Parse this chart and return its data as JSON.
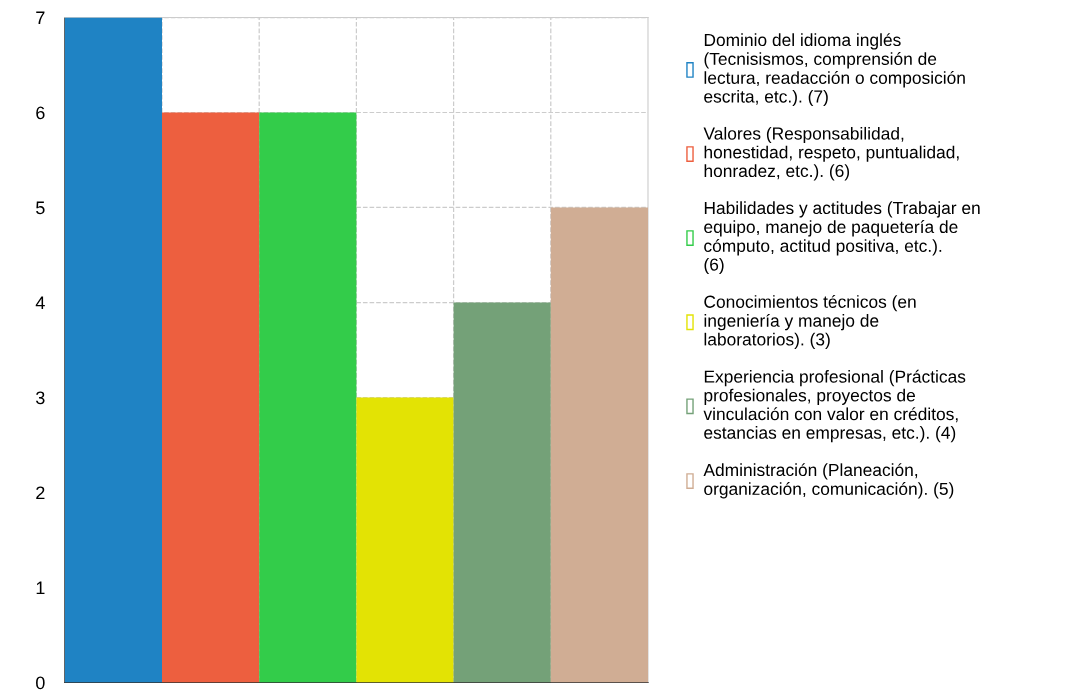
{
  "chart_data": {
    "type": "bar",
    "categories": [
      null,
      null,
      null,
      null,
      null,
      null
    ],
    "series": [
      {
        "name": "Dominio del idioma inglés (Tecnisismos, comprensión de lectura, readacción o composición escrita, etc.). (7)",
        "color": "#1f83c4",
        "values": [
          7,
          null,
          null,
          null,
          null,
          null
        ]
      },
      {
        "name": "Valores (Responsabilidad, honestidad, respeto, puntualidad, honradez, etc.). (6)",
        "color": "#ed5f3f",
        "values": [
          null,
          6,
          null,
          null,
          null,
          null
        ]
      },
      {
        "name": "Habilidades y actitudes (Trabajar en equipo, manejo de paquetería de cómputo, actitud positiva, etc.). (6)",
        "color": "#33cc4a",
        "values": [
          null,
          null,
          6,
          null,
          null,
          null
        ]
      },
      {
        "name": "Conocimientos técnicos (en ingeniería y manejo de laboratorios). (3)",
        "color": "#e3e304",
        "values": [
          null,
          null,
          null,
          3,
          null,
          null
        ]
      },
      {
        "name": "Experiencia profesional (Prácticas profesionales, proyectos de vinculación con valor en créditos, estancias en empresas, etc.). (4)",
        "color": "#74a178",
        "values": [
          null,
          null,
          null,
          null,
          4,
          null
        ]
      },
      {
        "name": "Administración (Planeación, organización, comunicación). (5)",
        "color": "#d0ad94",
        "values": [
          null,
          null,
          null,
          null,
          null,
          5
        ]
      }
    ],
    "ylim": [
      0,
      7
    ],
    "yticks": [
      0,
      1,
      2,
      3,
      4,
      5,
      6,
      7
    ],
    "grid": true,
    "legend": "right"
  }
}
